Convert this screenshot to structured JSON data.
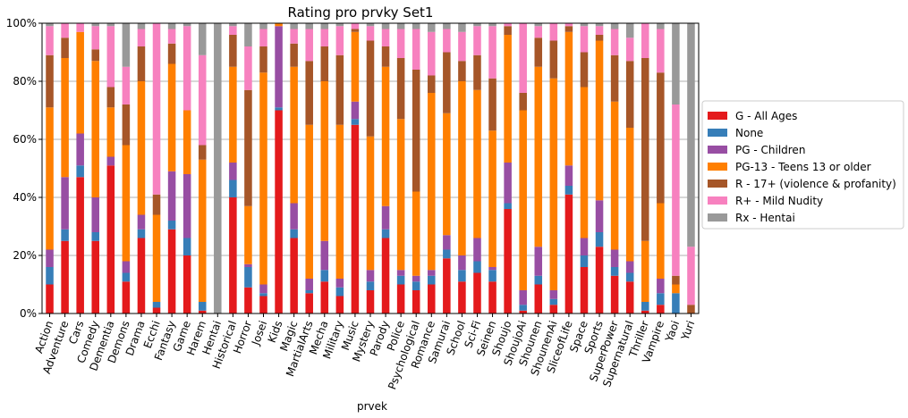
{
  "chart_data": {
    "type": "bar",
    "stacked": true,
    "normalized_percent": true,
    "title": "Rating pro prvky Set1",
    "xlabel": "prvek",
    "ylabel": "",
    "ylim": [
      0,
      1
    ],
    "yticks": [
      "0%",
      "20%",
      "40%",
      "60%",
      "80%",
      "100%"
    ],
    "grid": true,
    "legend_position": "right",
    "categories": [
      "Action",
      "Adventure",
      "Cars",
      "Comedy",
      "Dementia",
      "Demons",
      "Drama",
      "Ecchi",
      "Fantasy",
      "Game",
      "Harem",
      "Hentai",
      "Historical",
      "Horror",
      "Josei",
      "Kids",
      "Magic",
      "MartialArts",
      "Mecha",
      "Military",
      "Music",
      "Mystery",
      "Parody",
      "Police",
      "Psychological",
      "Romance",
      "Samurai",
      "School",
      "Sci-Fi",
      "Seinen",
      "Shoujo",
      "ShoujoAi",
      "Shounen",
      "ShounenAi",
      "SliceofLife",
      "Space",
      "Sports",
      "SuperPower",
      "Supernatural",
      "Thriller",
      "Vampire",
      "Yaoi",
      "Yuri"
    ],
    "series": [
      {
        "name": "G - All Ages",
        "color": "#e41a1c",
        "values": [
          0.1,
          0.25,
          0.47,
          0.25,
          0.51,
          0.11,
          0.26,
          0.02,
          0.29,
          0.2,
          0.01,
          0.0,
          0.4,
          0.09,
          0.06,
          0.7,
          0.26,
          0.07,
          0.11,
          0.06,
          0.65,
          0.08,
          0.26,
          0.1,
          0.08,
          0.1,
          0.19,
          0.11,
          0.14,
          0.11,
          0.36,
          0.01,
          0.1,
          0.03,
          0.41,
          0.16,
          0.23,
          0.13,
          0.11,
          0.01,
          0.03,
          0.0,
          0.0
        ]
      },
      {
        "name": "None",
        "color": "#377eb8",
        "values": [
          0.06,
          0.04,
          0.04,
          0.03,
          0.0,
          0.03,
          0.03,
          0.02,
          0.03,
          0.06,
          0.03,
          0.0,
          0.06,
          0.07,
          0.01,
          0.01,
          0.03,
          0.01,
          0.04,
          0.03,
          0.02,
          0.03,
          0.03,
          0.03,
          0.03,
          0.03,
          0.03,
          0.04,
          0.04,
          0.04,
          0.02,
          0.02,
          0.03,
          0.02,
          0.03,
          0.04,
          0.05,
          0.03,
          0.03,
          0.03,
          0.04,
          0.07,
          0.0
        ]
      },
      {
        "name": "PG - Children",
        "color": "#984ea3",
        "values": [
          0.06,
          0.18,
          0.11,
          0.12,
          0.03,
          0.04,
          0.05,
          0.0,
          0.17,
          0.22,
          0.0,
          0.0,
          0.06,
          0.01,
          0.03,
          0.28,
          0.09,
          0.04,
          0.1,
          0.03,
          0.06,
          0.04,
          0.08,
          0.02,
          0.02,
          0.02,
          0.05,
          0.05,
          0.08,
          0.01,
          0.14,
          0.05,
          0.1,
          0.03,
          0.07,
          0.06,
          0.11,
          0.06,
          0.04,
          0.0,
          0.05,
          0.0,
          0.0
        ]
      },
      {
        "name": "PG-13 - Teens 13 or older",
        "color": "#ff7f00",
        "values": [
          0.49,
          0.41,
          0.35,
          0.47,
          0.17,
          0.4,
          0.46,
          0.3,
          0.37,
          0.22,
          0.49,
          0.0,
          0.33,
          0.2,
          0.73,
          0.01,
          0.47,
          0.53,
          0.55,
          0.53,
          0.24,
          0.46,
          0.48,
          0.52,
          0.29,
          0.61,
          0.42,
          0.6,
          0.51,
          0.47,
          0.44,
          0.62,
          0.62,
          0.73,
          0.46,
          0.52,
          0.55,
          0.51,
          0.46,
          0.21,
          0.26,
          0.03,
          0.0
        ]
      },
      {
        "name": "R - 17+ (violence & profanity)",
        "color": "#a65628",
        "values": [
          0.18,
          0.07,
          0.0,
          0.04,
          0.07,
          0.14,
          0.12,
          0.07,
          0.07,
          0.0,
          0.05,
          0.0,
          0.11,
          0.4,
          0.09,
          0.0,
          0.08,
          0.22,
          0.12,
          0.24,
          0.01,
          0.33,
          0.07,
          0.21,
          0.42,
          0.06,
          0.21,
          0.07,
          0.12,
          0.18,
          0.03,
          0.06,
          0.1,
          0.13,
          0.02,
          0.12,
          0.02,
          0.16,
          0.23,
          0.63,
          0.45,
          0.03,
          0.03
        ]
      },
      {
        "name": "R+ - Mild Nudity",
        "color": "#f781bf",
        "values": [
          0.1,
          0.05,
          0.03,
          0.08,
          0.21,
          0.13,
          0.06,
          0.59,
          0.05,
          0.29,
          0.31,
          0.0,
          0.03,
          0.15,
          0.06,
          0.0,
          0.05,
          0.11,
          0.06,
          0.1,
          0.02,
          0.05,
          0.06,
          0.1,
          0.14,
          0.15,
          0.08,
          0.1,
          0.1,
          0.18,
          0.01,
          0.24,
          0.04,
          0.06,
          0.01,
          0.09,
          0.03,
          0.09,
          0.08,
          0.12,
          0.15,
          0.59,
          0.2
        ]
      },
      {
        "name": "Rx - Hentai",
        "color": "#999999",
        "values": [
          0.01,
          0.0,
          0.0,
          0.01,
          0.01,
          0.15,
          0.02,
          0.0,
          0.02,
          0.01,
          0.11,
          1.0,
          0.01,
          0.08,
          0.02,
          0.0,
          0.02,
          0.02,
          0.02,
          0.01,
          0.0,
          0.01,
          0.02,
          0.02,
          0.02,
          0.03,
          0.02,
          0.03,
          0.01,
          0.01,
          0.0,
          0.0,
          0.01,
          0.0,
          0.0,
          0.01,
          0.01,
          0.02,
          0.05,
          0.0,
          0.02,
          0.28,
          0.77
        ]
      }
    ]
  }
}
